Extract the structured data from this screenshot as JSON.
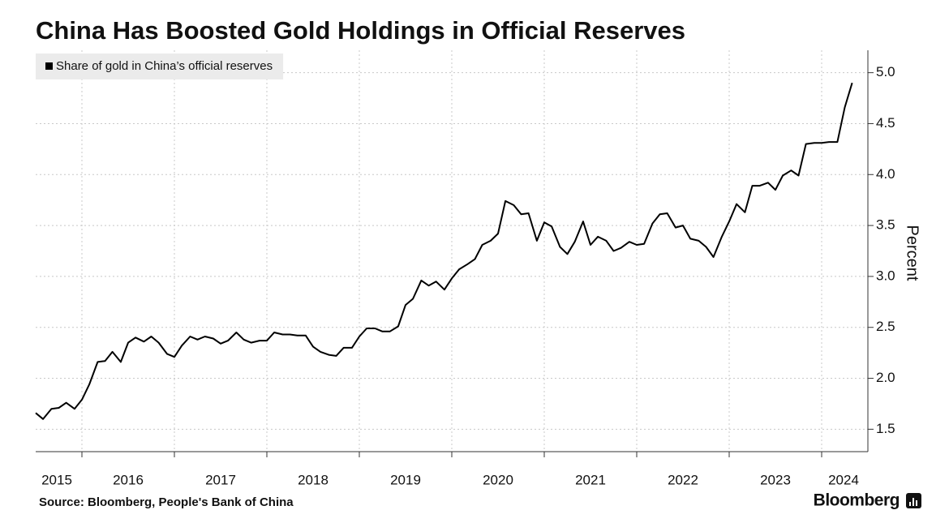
{
  "chart_data": {
    "type": "line",
    "title": "China Has Boosted Gold Holdings in Official Reserves",
    "source": "Source: Bloomberg, People's Bank of China",
    "brand": "Bloomberg",
    "y_label": "Percent",
    "x": [
      2015.5,
      2015.58,
      2015.67,
      2015.75,
      2015.83,
      2015.92,
      2016.0,
      2016.08,
      2016.17,
      2016.25,
      2016.33,
      2016.42,
      2016.5,
      2016.58,
      2016.67,
      2016.75,
      2016.83,
      2016.92,
      2017.0,
      2017.08,
      2017.17,
      2017.25,
      2017.33,
      2017.42,
      2017.5,
      2017.58,
      2017.67,
      2017.75,
      2017.83,
      2017.92,
      2018.0,
      2018.08,
      2018.17,
      2018.25,
      2018.33,
      2018.42,
      2018.5,
      2018.58,
      2018.67,
      2018.75,
      2018.83,
      2018.92,
      2019.0,
      2019.08,
      2019.17,
      2019.25,
      2019.33,
      2019.42,
      2019.5,
      2019.58,
      2019.67,
      2019.75,
      2019.83,
      2019.92,
      2020.0,
      2020.08,
      2020.17,
      2020.25,
      2020.33,
      2020.42,
      2020.5,
      2020.58,
      2020.67,
      2020.75,
      2020.83,
      2020.92,
      2021.0,
      2021.08,
      2021.17,
      2021.25,
      2021.33,
      2021.42,
      2021.5,
      2021.58,
      2021.67,
      2021.75,
      2021.83,
      2021.92,
      2022.0,
      2022.08,
      2022.17,
      2022.25,
      2022.33,
      2022.42,
      2022.5,
      2022.58,
      2022.67,
      2022.75,
      2022.83,
      2022.92,
      2023.0,
      2023.08,
      2023.17,
      2023.25,
      2023.33,
      2023.42,
      2023.5,
      2023.58,
      2023.67,
      2023.75,
      2023.83,
      2023.92,
      2024.0,
      2024.08,
      2024.17,
      2024.25,
      2024.33
    ],
    "series": [
      {
        "name": "Share of gold in China’s official reserves",
        "color": "#000000",
        "values": [
          1.66,
          1.6,
          1.7,
          1.71,
          1.76,
          1.7,
          1.79,
          1.94,
          2.16,
          2.17,
          2.26,
          2.16,
          2.35,
          2.4,
          2.36,
          2.41,
          2.35,
          2.24,
          2.21,
          2.32,
          2.41,
          2.38,
          2.41,
          2.39,
          2.34,
          2.37,
          2.45,
          2.38,
          2.35,
          2.37,
          2.37,
          2.45,
          2.43,
          2.43,
          2.42,
          2.42,
          2.31,
          2.26,
          2.23,
          2.22,
          2.3,
          2.3,
          2.41,
          2.49,
          2.49,
          2.46,
          2.46,
          2.51,
          2.72,
          2.78,
          2.96,
          2.91,
          2.95,
          2.87,
          2.98,
          3.07,
          3.12,
          3.17,
          3.31,
          3.35,
          3.42,
          3.74,
          3.7,
          3.61,
          3.62,
          3.35,
          3.53,
          3.49,
          3.29,
          3.22,
          3.34,
          3.54,
          3.31,
          3.39,
          3.35,
          3.25,
          3.28,
          3.34,
          3.31,
          3.32,
          3.52,
          3.61,
          3.62,
          3.48,
          3.5,
          3.37,
          3.35,
          3.29,
          3.19,
          3.39,
          3.54,
          3.71,
          3.63,
          3.89,
          3.89,
          3.92,
          3.85,
          3.99,
          4.04,
          3.99,
          4.3,
          4.31,
          4.31,
          4.32,
          4.32,
          4.66,
          4.9
        ]
      }
    ],
    "xlim": [
      2015.5,
      2024.5
    ],
    "xticks": [
      2015,
      2016,
      2017,
      2018,
      2019,
      2020,
      2021,
      2022,
      2023,
      2024
    ],
    "ylim": [
      1.28,
      5.22
    ],
    "yticks": [
      {
        "value": 1.5,
        "label": "1.5"
      },
      {
        "value": 2,
        "label": "2.0"
      },
      {
        "value": 2.5,
        "label": "2.5"
      },
      {
        "value": 3,
        "label": "3.0"
      },
      {
        "value": 3.5,
        "label": "3.5"
      },
      {
        "value": 4,
        "label": "4.0"
      },
      {
        "value": 4.5,
        "label": "4.5"
      },
      {
        "value": 5,
        "label": "5.0"
      }
    ],
    "grid": true,
    "legend": "top-left"
  }
}
